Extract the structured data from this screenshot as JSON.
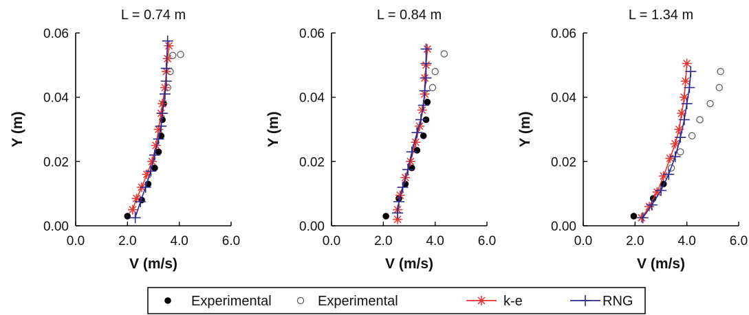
{
  "chart_data": [
    {
      "type": "line",
      "title": "L = 0.74 m",
      "xlabel": "V (m/s)",
      "ylabel": "Y (m)",
      "xlim": [
        0,
        6
      ],
      "ylim": [
        0,
        0.06
      ],
      "xticks": [
        "0.0",
        "2.0",
        "4.0",
        "6.0"
      ],
      "yticks": [
        "0.00",
        "0.02",
        "0.04",
        "0.06"
      ],
      "series": [
        {
          "name": "Experimental",
          "kind": "filled",
          "x": [
            2.0,
            2.55,
            2.8,
            3.05,
            3.2,
            3.3,
            3.35,
            3.4
          ],
          "y": [
            0.003,
            0.008,
            0.013,
            0.018,
            0.023,
            0.028,
            0.033,
            0.038
          ]
        },
        {
          "name": "Experimental",
          "kind": "open",
          "x": [
            3.55,
            3.65,
            3.75,
            4.05
          ],
          "y": [
            0.043,
            0.048,
            0.053,
            0.0533
          ]
        },
        {
          "name": "k-e",
          "kind": "star",
          "x": [
            2.2,
            2.35,
            2.55,
            2.75,
            2.95,
            3.1,
            3.2,
            3.3,
            3.35,
            3.45,
            3.5,
            3.55,
            3.6
          ],
          "y": [
            0.005,
            0.0085,
            0.012,
            0.016,
            0.02,
            0.025,
            0.03,
            0.035,
            0.038,
            0.043,
            0.048,
            0.052,
            0.056
          ]
        },
        {
          "name": "RNG",
          "kind": "plus",
          "x": [
            2.3,
            2.5,
            2.7,
            2.9,
            3.05,
            3.2,
            3.3,
            3.35,
            3.45,
            3.5,
            3.5,
            3.55
          ],
          "y": [
            0.0025,
            0.0075,
            0.012,
            0.017,
            0.022,
            0.027,
            0.031,
            0.035,
            0.041,
            0.045,
            0.049,
            0.0575
          ]
        }
      ]
    },
    {
      "type": "line",
      "title": "L = 0.84 m",
      "xlabel": "V (m/s)",
      "ylabel": "Y (m)",
      "xlim": [
        0,
        6
      ],
      "ylim": [
        0,
        0.06
      ],
      "xticks": [
        "0.0",
        "2.0",
        "4.0",
        "6.0"
      ],
      "yticks": [
        "0.00",
        "0.02",
        "0.04",
        "0.06"
      ],
      "series": [
        {
          "name": "Experimental",
          "kind": "filled",
          "x": [
            2.1,
            2.6,
            2.85,
            3.1,
            3.3,
            3.55,
            3.65,
            3.7
          ],
          "y": [
            0.003,
            0.0085,
            0.013,
            0.018,
            0.0235,
            0.028,
            0.033,
            0.0385
          ]
        },
        {
          "name": "Experimental",
          "kind": "open",
          "x": [
            3.9,
            4.0,
            4.35
          ],
          "y": [
            0.043,
            0.048,
            0.0535
          ]
        },
        {
          "name": "k-e",
          "kind": "star",
          "x": [
            2.55,
            2.55,
            2.65,
            2.85,
            3.05,
            3.25,
            3.4,
            3.5,
            3.6,
            3.6,
            3.65,
            3.7
          ],
          "y": [
            0.002,
            0.005,
            0.0095,
            0.015,
            0.02,
            0.026,
            0.031,
            0.036,
            0.041,
            0.046,
            0.05,
            0.055
          ]
        },
        {
          "name": "RNG",
          "kind": "plus",
          "x": [
            2.55,
            2.6,
            2.75,
            2.95,
            3.1,
            3.3,
            3.45,
            3.55,
            3.6,
            3.65,
            3.65,
            3.65
          ],
          "y": [
            0.004,
            0.0075,
            0.012,
            0.0175,
            0.023,
            0.029,
            0.033,
            0.0375,
            0.042,
            0.046,
            0.0505,
            0.055
          ]
        }
      ]
    },
    {
      "type": "line",
      "title": "L = 1.34 m",
      "xlabel": "V (m/s)",
      "ylabel": "Y (m)",
      "xlim": [
        0,
        6
      ],
      "ylim": [
        0,
        0.06
      ],
      "xticks": [
        "0.0",
        "2.0",
        "4.0",
        "6.0"
      ],
      "yticks": [
        "0.00",
        "0.02",
        "0.04",
        "0.06"
      ],
      "series": [
        {
          "name": "Experimental",
          "kind": "filled",
          "x": [
            1.95,
            2.7,
            3.1
          ],
          "y": [
            0.003,
            0.0085,
            0.013
          ]
        },
        {
          "name": "Experimental",
          "kind": "open",
          "x": [
            3.4,
            3.75,
            4.2,
            4.5,
            4.9,
            5.25,
            5.3
          ],
          "y": [
            0.018,
            0.023,
            0.028,
            0.033,
            0.038,
            0.043,
            0.048
          ]
        },
        {
          "name": "k-e",
          "kind": "star",
          "x": [
            2.25,
            2.55,
            2.85,
            3.1,
            3.35,
            3.55,
            3.7,
            3.8,
            3.9,
            3.95,
            4.0
          ],
          "y": [
            0.0025,
            0.006,
            0.0105,
            0.0155,
            0.021,
            0.0255,
            0.03,
            0.035,
            0.04,
            0.045,
            0.0505
          ]
        },
        {
          "name": "RNG",
          "kind": "plus",
          "x": [
            2.3,
            2.65,
            3.0,
            3.3,
            3.55,
            3.75,
            3.9,
            4.0,
            4.1,
            4.15
          ],
          "y": [
            0.0025,
            0.0065,
            0.011,
            0.016,
            0.0215,
            0.0275,
            0.033,
            0.038,
            0.043,
            0.048
          ]
        }
      ]
    }
  ],
  "legend": {
    "position": "bottom",
    "colors": {
      "k-e": "#e8332d",
      "RNG": "#2e2a8c"
    },
    "entries": [
      {
        "label": "Experimental",
        "marker": "filled"
      },
      {
        "label": "Experimental",
        "marker": "open"
      },
      {
        "label": "k-e",
        "marker": "star"
      },
      {
        "label": "RNG",
        "marker": "plus"
      }
    ]
  }
}
